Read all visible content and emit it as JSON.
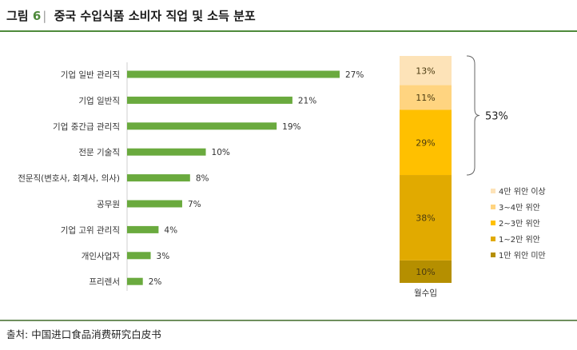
{
  "header": {
    "figure_label": "그림",
    "figure_number": "6",
    "title": "중국 수입식품 소비자 직업 및 소득 분포"
  },
  "source": {
    "label": "출처:",
    "text": "中国进口食品消费研究白皮书"
  },
  "colors": {
    "accent": "#4e8a3b",
    "bar": "#6aaa3e"
  },
  "chart_data": [
    {
      "type": "bar",
      "orientation": "horizontal",
      "categories": [
        "기업 일반 관리직",
        "기업 일반직",
        "기업 중간급 관리직",
        "전문 기술직",
        "전문직(변호사, 회계사, 의사)",
        "공무원",
        "기업 고위 관리직",
        "개인사업자",
        "프리렌서"
      ],
      "values": [
        27,
        21,
        19,
        10,
        8,
        7,
        4,
        3,
        2
      ],
      "value_labels": [
        "27%",
        "21%",
        "19%",
        "10%",
        "8%",
        "7%",
        "4%",
        "3%",
        "2%"
      ],
      "unit": "%",
      "xlim": [
        0,
        27
      ],
      "grid": false,
      "bar_color": "#6aaa3e"
    },
    {
      "type": "bar",
      "stacked": true,
      "categories": [
        "월수입"
      ],
      "series": [
        {
          "name": "1만 위안 미만",
          "value": 10,
          "label": "10%",
          "color": "#b58f00"
        },
        {
          "name": "1~2만 위안",
          "value": 38,
          "label": "38%",
          "color": "#e1aa00"
        },
        {
          "name": "2~3만 위안",
          "value": 29,
          "label": "29%",
          "color": "#ffc000"
        },
        {
          "name": "3~4만 위안",
          "value": 11,
          "label": "11%",
          "color": "#ffd480"
        },
        {
          "name": "4만 위안 이상",
          "value": 13,
          "label": "13%",
          "color": "#fde3b8"
        }
      ],
      "ylim": [
        0,
        101
      ],
      "annotation": {
        "text": "53%",
        "covers": [
          "2~3만 위안",
          "3~4만 위안",
          "4만 위안 이상"
        ]
      },
      "legend": {
        "position": "right",
        "order": [
          "4만 위안 이상",
          "3~4만 위안",
          "2~3만 위안",
          "1~2만 위안",
          "1만 위안 미만"
        ]
      }
    }
  ]
}
